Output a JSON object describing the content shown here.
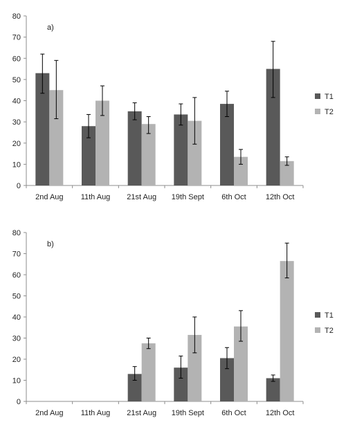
{
  "chart_data": [
    {
      "type": "bar",
      "panel_label": "a)",
      "categories": [
        "2nd Aug",
        "11th Aug",
        "21st Aug",
        "19th Sept",
        "6th Oct",
        "12th Oct"
      ],
      "series": [
        {
          "name": "T1",
          "color": "#595959",
          "values": [
            53,
            28,
            35,
            33.5,
            38.5,
            55
          ],
          "err_low": [
            43.5,
            22.5,
            31,
            28.5,
            32.5,
            41.5
          ],
          "err_high": [
            62,
            33.5,
            39,
            38.5,
            44.5,
            68
          ]
        },
        {
          "name": "T2",
          "color": "#b3b3b3",
          "values": [
            45,
            40,
            29,
            30.5,
            13.5,
            11.5
          ],
          "err_low": [
            31.5,
            33,
            24.5,
            19.5,
            10,
            9.5
          ],
          "err_high": [
            59,
            47,
            32.5,
            41.5,
            17,
            13.5
          ]
        }
      ],
      "yticks": [
        "0",
        "10",
        "20",
        "30",
        "40",
        "50",
        "60",
        "70",
        "80"
      ],
      "ylim": [
        0,
        80
      ],
      "legend_position": "right",
      "grid": false
    },
    {
      "type": "bar",
      "panel_label": "b)",
      "categories": [
        "2nd Aug",
        "11th Aug",
        "21st Aug",
        "19th Sept",
        "6th Oct",
        "12th Oct"
      ],
      "series": [
        {
          "name": "T1",
          "color": "#595959",
          "values": [
            0,
            0,
            13,
            16,
            20.5,
            11
          ],
          "err_low": [
            0,
            0,
            10,
            11,
            15.5,
            9.5
          ],
          "err_high": [
            0,
            0,
            16.5,
            21.5,
            25.5,
            12.5
          ]
        },
        {
          "name": "T2",
          "color": "#b3b3b3",
          "values": [
            0,
            0,
            27.5,
            31.5,
            35.5,
            66.5
          ],
          "err_low": [
            0,
            0,
            25,
            23,
            28.5,
            58.5
          ],
          "err_high": [
            0,
            0,
            30,
            40,
            43,
            75
          ]
        }
      ],
      "yticks": [
        "0",
        "10",
        "20",
        "30",
        "40",
        "50",
        "60",
        "70",
        "80"
      ],
      "ylim": [
        0,
        80
      ],
      "legend_position": "right",
      "grid": false
    }
  ]
}
